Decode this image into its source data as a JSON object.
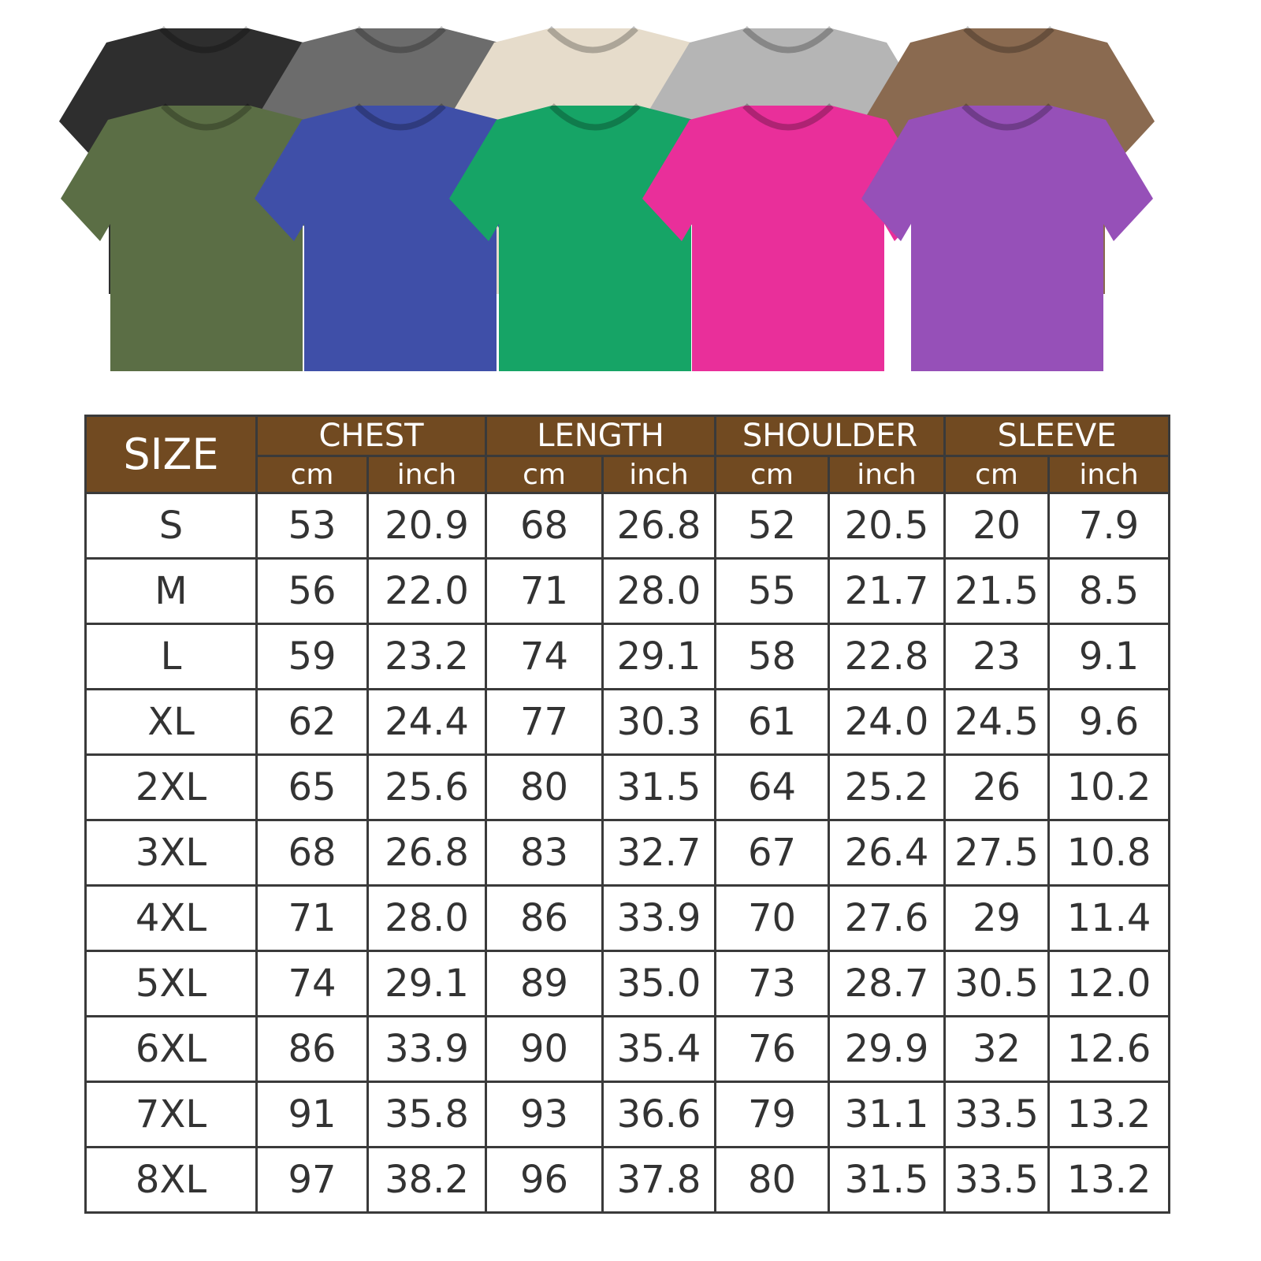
{
  "shirt_colors": {
    "back_row": [
      "#2e2e2e",
      "#6c6c6c",
      "#e6dccb",
      "#b5b5b5",
      "#8a6a50"
    ],
    "front_row": [
      "#5b6e45",
      "#3f4fa8",
      "#16a466",
      "#e92f9a",
      "#9650b8"
    ]
  },
  "accent_color": "#714a21",
  "table": {
    "size_header": "SIZE",
    "groups": [
      "CHEST",
      "LENGTH",
      "SHOULDER",
      "SLEEVE"
    ],
    "units": [
      "cm",
      "inch"
    ],
    "rows": [
      [
        "S",
        "53",
        "20.9",
        "68",
        "26.8",
        "52",
        "20.5",
        "20",
        "7.9"
      ],
      [
        "M",
        "56",
        "22.0",
        "71",
        "28.0",
        "55",
        "21.7",
        "21.5",
        "8.5"
      ],
      [
        "L",
        "59",
        "23.2",
        "74",
        "29.1",
        "58",
        "22.8",
        "23",
        "9.1"
      ],
      [
        "XL",
        "62",
        "24.4",
        "77",
        "30.3",
        "61",
        "24.0",
        "24.5",
        "9.6"
      ],
      [
        "2XL",
        "65",
        "25.6",
        "80",
        "31.5",
        "64",
        "25.2",
        "26",
        "10.2"
      ],
      [
        "3XL",
        "68",
        "26.8",
        "83",
        "32.7",
        "67",
        "26.4",
        "27.5",
        "10.8"
      ],
      [
        "4XL",
        "71",
        "28.0",
        "86",
        "33.9",
        "70",
        "27.6",
        "29",
        "11.4"
      ],
      [
        "5XL",
        "74",
        "29.1",
        "89",
        "35.0",
        "73",
        "28.7",
        "30.5",
        "12.0"
      ],
      [
        "6XL",
        "86",
        "33.9",
        "90",
        "35.4",
        "76",
        "29.9",
        "32",
        "12.6"
      ],
      [
        "7XL",
        "91",
        "35.8",
        "93",
        "36.6",
        "79",
        "31.1",
        "33.5",
        "13.2"
      ],
      [
        "8XL",
        "97",
        "38.2",
        "96",
        "37.8",
        "80",
        "31.5",
        "33.5",
        "13.2"
      ]
    ]
  }
}
